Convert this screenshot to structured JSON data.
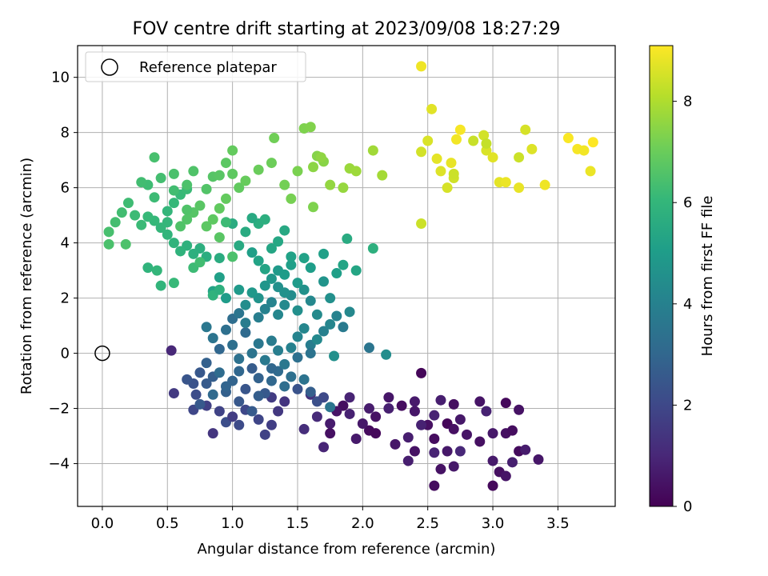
{
  "chart_data": {
    "type": "scatter",
    "title": "FOV centre drift starting at 2023/09/08 18:27:29",
    "xlabel": "Angular distance from reference (arcmin)",
    "ylabel": "Rotation from reference (arcmin)",
    "xlim": [
      -0.19,
      3.94
    ],
    "ylim": [
      -5.55,
      11.15
    ],
    "xticks": [
      0.0,
      0.5,
      1.0,
      1.5,
      2.0,
      2.5,
      3.0,
      3.5
    ],
    "xtick_labels": [
      "0.0",
      "0.5",
      "1.0",
      "1.5",
      "2.0",
      "2.5",
      "3.0",
      "3.5"
    ],
    "yticks": [
      -4,
      -2,
      0,
      2,
      4,
      6,
      8,
      10
    ],
    "ytick_labels": [
      "−4",
      "−2",
      "0",
      "2",
      "4",
      "6",
      "8",
      "10"
    ],
    "grid": true,
    "legend": {
      "position": "top-left",
      "entries": [
        {
          "label": "Reference platepar",
          "marker": "open-circle",
          "color": "#000000"
        }
      ]
    },
    "reference_point": {
      "x": 0.0,
      "y": 0.0
    },
    "colorbar": {
      "label": "Hours from first FF file",
      "colormap": "viridis",
      "range": [
        0,
        9.1
      ],
      "ticks": [
        0,
        2,
        4,
        6,
        8
      ],
      "tick_labels": [
        "0",
        "2",
        "4",
        "6",
        "8"
      ]
    },
    "points": [
      [
        2.45,
        -0.72,
        0.15
      ],
      [
        2.55,
        -4.8,
        0.3
      ],
      [
        2.6,
        -4.2,
        0.45
      ],
      [
        2.7,
        -4.1,
        0.6
      ],
      [
        2.35,
        -3.9,
        0.75
      ],
      [
        2.55,
        -3.6,
        0.9
      ],
      [
        2.75,
        -3.55,
        1.0
      ],
      [
        2.9,
        -3.2,
        0.4
      ],
      [
        3.0,
        -4.8,
        0.2
      ],
      [
        3.05,
        -4.3,
        0.35
      ],
      [
        3.1,
        -4.45,
        0.5
      ],
      [
        3.0,
        -3.9,
        0.65
      ],
      [
        3.15,
        -3.95,
        0.8
      ],
      [
        3.2,
        -3.55,
        0.25
      ],
      [
        3.35,
        -3.85,
        0.55
      ],
      [
        3.25,
        -3.5,
        0.7
      ],
      [
        3.1,
        -2.9,
        0.4
      ],
      [
        3.15,
        -2.8,
        0.3
      ],
      [
        3.0,
        -2.9,
        0.6
      ],
      [
        3.2,
        -2.05,
        0.45
      ],
      [
        3.1,
        -1.8,
        0.2
      ],
      [
        2.95,
        -2.1,
        0.85
      ],
      [
        2.9,
        -1.75,
        0.5
      ],
      [
        2.7,
        -1.85,
        0.35
      ],
      [
        2.75,
        -2.4,
        0.6
      ],
      [
        2.65,
        -2.55,
        0.15
      ],
      [
        2.6,
        -1.7,
        0.75
      ],
      [
        2.55,
        -2.25,
        0.9
      ],
      [
        2.5,
        -2.6,
        0.4
      ],
      [
        2.4,
        -2.1,
        0.55
      ],
      [
        2.3,
        -1.9,
        0.3
      ],
      [
        2.4,
        -1.75,
        0.65
      ],
      [
        2.2,
        -2.0,
        0.8
      ],
      [
        2.1,
        -2.3,
        0.45
      ],
      [
        2.05,
        -2.8,
        0.25
      ],
      [
        2.0,
        -2.55,
        0.6
      ],
      [
        1.9,
        -2.2,
        0.85
      ],
      [
        1.85,
        -1.9,
        0.35
      ],
      [
        1.8,
        -2.1,
        0.5
      ],
      [
        1.75,
        -2.55,
        0.7
      ],
      [
        1.7,
        -3.4,
        0.95
      ],
      [
        1.75,
        -2.9,
        0.4
      ],
      [
        1.95,
        -3.1,
        0.65
      ],
      [
        2.1,
        -2.9,
        0.2
      ],
      [
        2.25,
        -3.3,
        0.55
      ],
      [
        2.35,
        -3.05,
        0.75
      ],
      [
        2.4,
        -3.55,
        0.45
      ],
      [
        2.55,
        -3.1,
        0.3
      ],
      [
        2.65,
        -3.55,
        0.6
      ],
      [
        2.45,
        -2.6,
        0.85
      ],
      [
        2.8,
        -2.95,
        0.5
      ],
      [
        2.7,
        -2.75,
        0.4
      ],
      [
        2.05,
        -2.0,
        0.7
      ],
      [
        2.2,
        -1.6,
        0.55
      ],
      [
        1.9,
        -1.6,
        0.9
      ],
      [
        1.65,
        -2.3,
        1.1
      ],
      [
        1.6,
        -1.5,
        1.3
      ],
      [
        1.55,
        -2.75,
        1.2
      ],
      [
        1.4,
        -1.75,
        1.4
      ],
      [
        1.3,
        -1.6,
        1.6
      ],
      [
        1.35,
        -2.1,
        1.5
      ],
      [
        1.3,
        -2.6,
        1.7
      ],
      [
        1.25,
        -2.95,
        1.8
      ],
      [
        1.2,
        -2.4,
        1.9
      ],
      [
        1.1,
        -2.05,
        2.0
      ],
      [
        1.05,
        -2.6,
        2.1
      ],
      [
        0.95,
        -2.5,
        2.2
      ],
      [
        1.0,
        -2.3,
        1.65
      ],
      [
        0.9,
        -2.1,
        1.85
      ],
      [
        0.85,
        -2.9,
        1.45
      ],
      [
        0.8,
        -1.9,
        1.75
      ],
      [
        0.7,
        -2.05,
        1.95
      ],
      [
        0.72,
        -1.5,
        2.15
      ],
      [
        0.7,
        -1.1,
        2.3
      ],
      [
        0.55,
        -1.45,
        1.55
      ],
      [
        0.53,
        0.1,
        1.0
      ],
      [
        0.65,
        -0.95,
        2.4
      ],
      [
        0.75,
        -0.7,
        2.5
      ],
      [
        0.8,
        -1.1,
        2.6
      ],
      [
        0.85,
        -0.85,
        2.7
      ],
      [
        0.95,
        -1.4,
        2.8
      ],
      [
        1.0,
        -1.0,
        2.9
      ],
      [
        1.05,
        -0.65,
        3.0
      ],
      [
        1.1,
        -1.3,
        2.45
      ],
      [
        1.15,
        -0.55,
        2.65
      ],
      [
        1.2,
        -0.9,
        2.85
      ],
      [
        1.25,
        -1.45,
        2.55
      ],
      [
        1.3,
        -1.0,
        3.05
      ],
      [
        1.35,
        -0.65,
        3.15
      ],
      [
        1.4,
        -1.2,
        3.25
      ],
      [
        1.45,
        -0.85,
        3.35
      ],
      [
        1.5,
        -1.3,
        2.35
      ],
      [
        1.55,
        -0.95,
        3.45
      ],
      [
        1.6,
        -1.4,
        2.75
      ],
      [
        1.65,
        -1.75,
        2.25
      ],
      [
        1.7,
        -1.6,
        2.05
      ],
      [
        1.75,
        -1.95,
        3.55
      ],
      [
        1.05,
        -1.75,
        2.5
      ],
      [
        1.15,
        -2.1,
        2.6
      ],
      [
        1.2,
        -1.55,
        2.7
      ],
      [
        0.95,
        -1.2,
        2.95
      ],
      [
        0.85,
        -1.5,
        3.1
      ],
      [
        0.75,
        -1.85,
        2.55
      ],
      [
        0.8,
        -0.35,
        2.8
      ],
      [
        0.9,
        -0.7,
        3.2
      ],
      [
        1.0,
        0.3,
        3.3
      ],
      [
        1.05,
        -0.2,
        3.4
      ],
      [
        1.15,
        0.0,
        3.5
      ],
      [
        1.2,
        0.35,
        3.6
      ],
      [
        1.25,
        -0.25,
        3.7
      ],
      [
        1.3,
        0.45,
        3.8
      ],
      [
        1.35,
        0.1,
        3.9
      ],
      [
        1.4,
        -0.4,
        3.65
      ],
      [
        1.45,
        0.2,
        4.0
      ],
      [
        1.5,
        0.6,
        4.1
      ],
      [
        1.55,
        0.9,
        4.2
      ],
      [
        1.6,
        0.3,
        3.85
      ],
      [
        1.65,
        0.5,
        4.3
      ],
      [
        1.7,
        0.8,
        3.95
      ],
      [
        1.75,
        1.05,
        4.15
      ],
      [
        1.8,
        1.35,
        4.05
      ],
      [
        1.85,
        0.95,
        3.75
      ],
      [
        1.9,
        1.5,
        4.25
      ],
      [
        2.05,
        0.2,
        3.55
      ],
      [
        2.18,
        -0.05,
        4.45
      ],
      [
        1.78,
        -0.1,
        4.55
      ],
      [
        1.6,
        0.0,
        3.45
      ],
      [
        1.5,
        -0.15,
        3.35
      ],
      [
        1.3,
        -0.55,
        3.05
      ],
      [
        1.1,
        0.75,
        3.15
      ],
      [
        1.0,
        1.25,
        3.25
      ],
      [
        0.95,
        0.85,
        3.35
      ],
      [
        0.85,
        0.55,
        3.5
      ],
      [
        0.8,
        0.95,
        3.6
      ],
      [
        0.9,
        0.15,
        3.0
      ],
      [
        1.05,
        1.45,
        3.55
      ],
      [
        1.1,
        1.1,
        3.8
      ],
      [
        1.2,
        1.3,
        3.9
      ],
      [
        1.25,
        1.6,
        4.0
      ],
      [
        1.3,
        1.85,
        4.1
      ],
      [
        1.35,
        1.4,
        4.2
      ],
      [
        1.4,
        1.75,
        4.3
      ],
      [
        1.45,
        2.1,
        4.4
      ],
      [
        1.5,
        1.55,
        4.5
      ],
      [
        1.55,
        2.3,
        4.6
      ],
      [
        1.6,
        1.9,
        4.25
      ],
      [
        1.65,
        1.4,
        4.35
      ],
      [
        1.7,
        2.6,
        4.7
      ],
      [
        1.75,
        2.0,
        4.55
      ],
      [
        1.2,
        2.0,
        4.65
      ],
      [
        1.25,
        2.45,
        4.75
      ],
      [
        1.15,
        2.2,
        4.85
      ],
      [
        1.1,
        1.75,
        4.45
      ],
      [
        1.3,
        2.7,
        4.8
      ],
      [
        1.35,
        3.0,
        4.9
      ],
      [
        1.4,
        2.85,
        5.0
      ],
      [
        1.45,
        3.2,
        5.1
      ],
      [
        1.5,
        2.55,
        4.95
      ],
      [
        1.55,
        3.45,
        5.2
      ],
      [
        1.6,
        3.1,
        5.05
      ],
      [
        1.7,
        3.6,
        5.15
      ],
      [
        1.2,
        3.35,
        5.25
      ],
      [
        1.25,
        3.05,
        5.3
      ],
      [
        1.3,
        3.8,
        5.35
      ],
      [
        1.35,
        4.05,
        5.4
      ],
      [
        1.4,
        4.45,
        5.45
      ],
      [
        1.45,
        3.5,
        5.2
      ],
      [
        1.15,
        3.65,
        5.1
      ],
      [
        1.05,
        3.9,
        5.5
      ],
      [
        1.1,
        4.4,
        5.55
      ],
      [
        1.0,
        4.7,
        5.6
      ],
      [
        1.2,
        4.7,
        5.65
      ],
      [
        1.25,
        4.85,
        5.7
      ],
      [
        1.15,
        4.9,
        5.5
      ],
      [
        1.85,
        3.2,
        5.3
      ],
      [
        1.8,
        2.9,
        5.1
      ],
      [
        1.95,
        3.0,
        5.35
      ],
      [
        1.88,
        4.15,
        5.55
      ],
      [
        2.08,
        3.8,
        5.75
      ],
      [
        1.05,
        2.3,
        4.9
      ],
      [
        0.95,
        2.0,
        5.0
      ],
      [
        0.9,
        2.75,
        5.15
      ],
      [
        0.85,
        2.25,
        5.25
      ],
      [
        1.35,
        2.4,
        4.55
      ],
      [
        1.4,
        2.2,
        4.6
      ],
      [
        0.9,
        3.45,
        5.6
      ],
      [
        0.8,
        3.5,
        5.65
      ],
      [
        0.75,
        3.8,
        5.7
      ],
      [
        0.7,
        3.6,
        5.75
      ],
      [
        0.65,
        3.9,
        5.8
      ],
      [
        0.6,
        3.7,
        5.85
      ],
      [
        0.55,
        4.0,
        5.9
      ],
      [
        0.5,
        4.3,
        5.95
      ],
      [
        0.45,
        4.55,
        6.0
      ],
      [
        0.4,
        4.8,
        6.05
      ],
      [
        0.35,
        4.95,
        6.1
      ],
      [
        0.3,
        4.65,
        6.15
      ],
      [
        0.25,
        5.0,
        6.2
      ],
      [
        0.2,
        5.45,
        6.25
      ],
      [
        0.15,
        5.1,
        6.3
      ],
      [
        0.1,
        4.75,
        6.35
      ],
      [
        0.05,
        4.4,
        6.4
      ],
      [
        0.05,
        3.95,
        6.45
      ],
      [
        0.18,
        3.95,
        6.5
      ],
      [
        0.35,
        3.1,
        5.9
      ],
      [
        0.42,
        3.0,
        6.0
      ],
      [
        0.45,
        2.45,
        5.95
      ],
      [
        0.55,
        2.55,
        6.1
      ],
      [
        0.7,
        3.1,
        6.2
      ],
      [
        0.75,
        3.3,
        6.3
      ],
      [
        0.85,
        2.1,
        5.85
      ],
      [
        0.9,
        2.3,
        5.75
      ],
      [
        0.6,
        4.6,
        6.55
      ],
      [
        0.65,
        4.85,
        6.6
      ],
      [
        0.7,
        5.1,
        6.65
      ],
      [
        0.75,
        5.35,
        6.7
      ],
      [
        0.8,
        4.6,
        6.75
      ],
      [
        0.85,
        4.85,
        6.8
      ],
      [
        0.9,
        5.25,
        6.85
      ],
      [
        0.95,
        5.6,
        6.9
      ],
      [
        0.5,
        5.15,
        6.0
      ],
      [
        0.55,
        5.45,
        6.05
      ],
      [
        0.6,
        5.75,
        6.1
      ],
      [
        0.65,
        5.95,
        6.15
      ],
      [
        0.4,
        5.65,
        6.2
      ],
      [
        0.35,
        6.1,
        6.25
      ],
      [
        0.3,
        6.2,
        6.3
      ],
      [
        0.45,
        6.35,
        6.35
      ],
      [
        0.4,
        7.1,
        6.4
      ],
      [
        0.55,
        6.5,
        6.45
      ],
      [
        0.65,
        6.1,
        6.5
      ],
      [
        0.7,
        6.6,
        6.55
      ],
      [
        0.8,
        5.95,
        6.6
      ],
      [
        0.85,
        6.4,
        6.65
      ],
      [
        0.9,
        6.45,
        6.7
      ],
      [
        0.95,
        6.9,
        6.75
      ],
      [
        1.0,
        6.5,
        6.8
      ],
      [
        1.05,
        6.0,
        6.85
      ],
      [
        1.0,
        7.35,
        6.9
      ],
      [
        1.1,
        6.25,
        6.95
      ],
      [
        1.2,
        6.65,
        7.0
      ],
      [
        1.3,
        6.9,
        7.05
      ],
      [
        1.32,
        7.8,
        7.1
      ],
      [
        1.4,
        6.1,
        7.15
      ],
      [
        1.45,
        5.6,
        7.2
      ],
      [
        1.5,
        6.6,
        7.25
      ],
      [
        1.55,
        8.15,
        7.3
      ],
      [
        1.6,
        8.2,
        7.35
      ],
      [
        1.65,
        7.15,
        7.4
      ],
      [
        1.7,
        6.95,
        7.45
      ],
      [
        1.62,
        6.75,
        7.5
      ],
      [
        1.68,
        7.1,
        7.55
      ],
      [
        1.75,
        6.1,
        7.6
      ],
      [
        1.85,
        6.0,
        7.65
      ],
      [
        1.9,
        6.7,
        7.7
      ],
      [
        1.95,
        6.6,
        7.75
      ],
      [
        2.08,
        7.35,
        7.8
      ],
      [
        2.15,
        6.45,
        7.85
      ],
      [
        1.62,
        5.3,
        7.3
      ],
      [
        0.9,
        4.2,
        6.7
      ],
      [
        1.0,
        3.5,
        6.45
      ],
      [
        0.95,
        4.75,
        6.2
      ],
      [
        0.55,
        5.9,
        6.3
      ],
      [
        0.5,
        4.75,
        6.0
      ],
      [
        0.65,
        5.2,
        6.55
      ],
      [
        2.45,
        10.4,
        8.9
      ],
      [
        2.53,
        8.85,
        8.7
      ],
      [
        2.5,
        7.7,
        8.6
      ],
      [
        2.45,
        7.3,
        8.5
      ],
      [
        2.45,
        4.7,
        8.4
      ],
      [
        2.57,
        7.05,
        8.75
      ],
      [
        2.6,
        6.6,
        8.65
      ],
      [
        2.65,
        6.0,
        8.55
      ],
      [
        2.7,
        6.35,
        8.45
      ],
      [
        2.68,
        6.9,
        8.8
      ],
      [
        2.72,
        7.75,
        8.95
      ],
      [
        2.75,
        8.1,
        9.0
      ],
      [
        2.85,
        7.7,
        8.35
      ],
      [
        2.93,
        7.9,
        8.5
      ],
      [
        2.95,
        7.35,
        8.6
      ],
      [
        3.0,
        7.1,
        8.7
      ],
      [
        3.05,
        6.2,
        8.75
      ],
      [
        3.1,
        6.2,
        8.85
      ],
      [
        3.2,
        7.1,
        8.4
      ],
      [
        3.25,
        8.1,
        8.55
      ],
      [
        3.3,
        7.4,
        8.65
      ],
      [
        3.2,
        6.0,
        8.8
      ],
      [
        3.4,
        6.1,
        8.9
      ],
      [
        3.58,
        7.8,
        9.05
      ],
      [
        3.65,
        7.4,
        9.0
      ],
      [
        3.7,
        7.35,
        8.95
      ],
      [
        3.77,
        7.65,
        9.1
      ],
      [
        3.75,
        6.6,
        8.85
      ],
      [
        2.7,
        6.5,
        8.4
      ],
      [
        2.95,
        7.6,
        8.3
      ]
    ]
  }
}
